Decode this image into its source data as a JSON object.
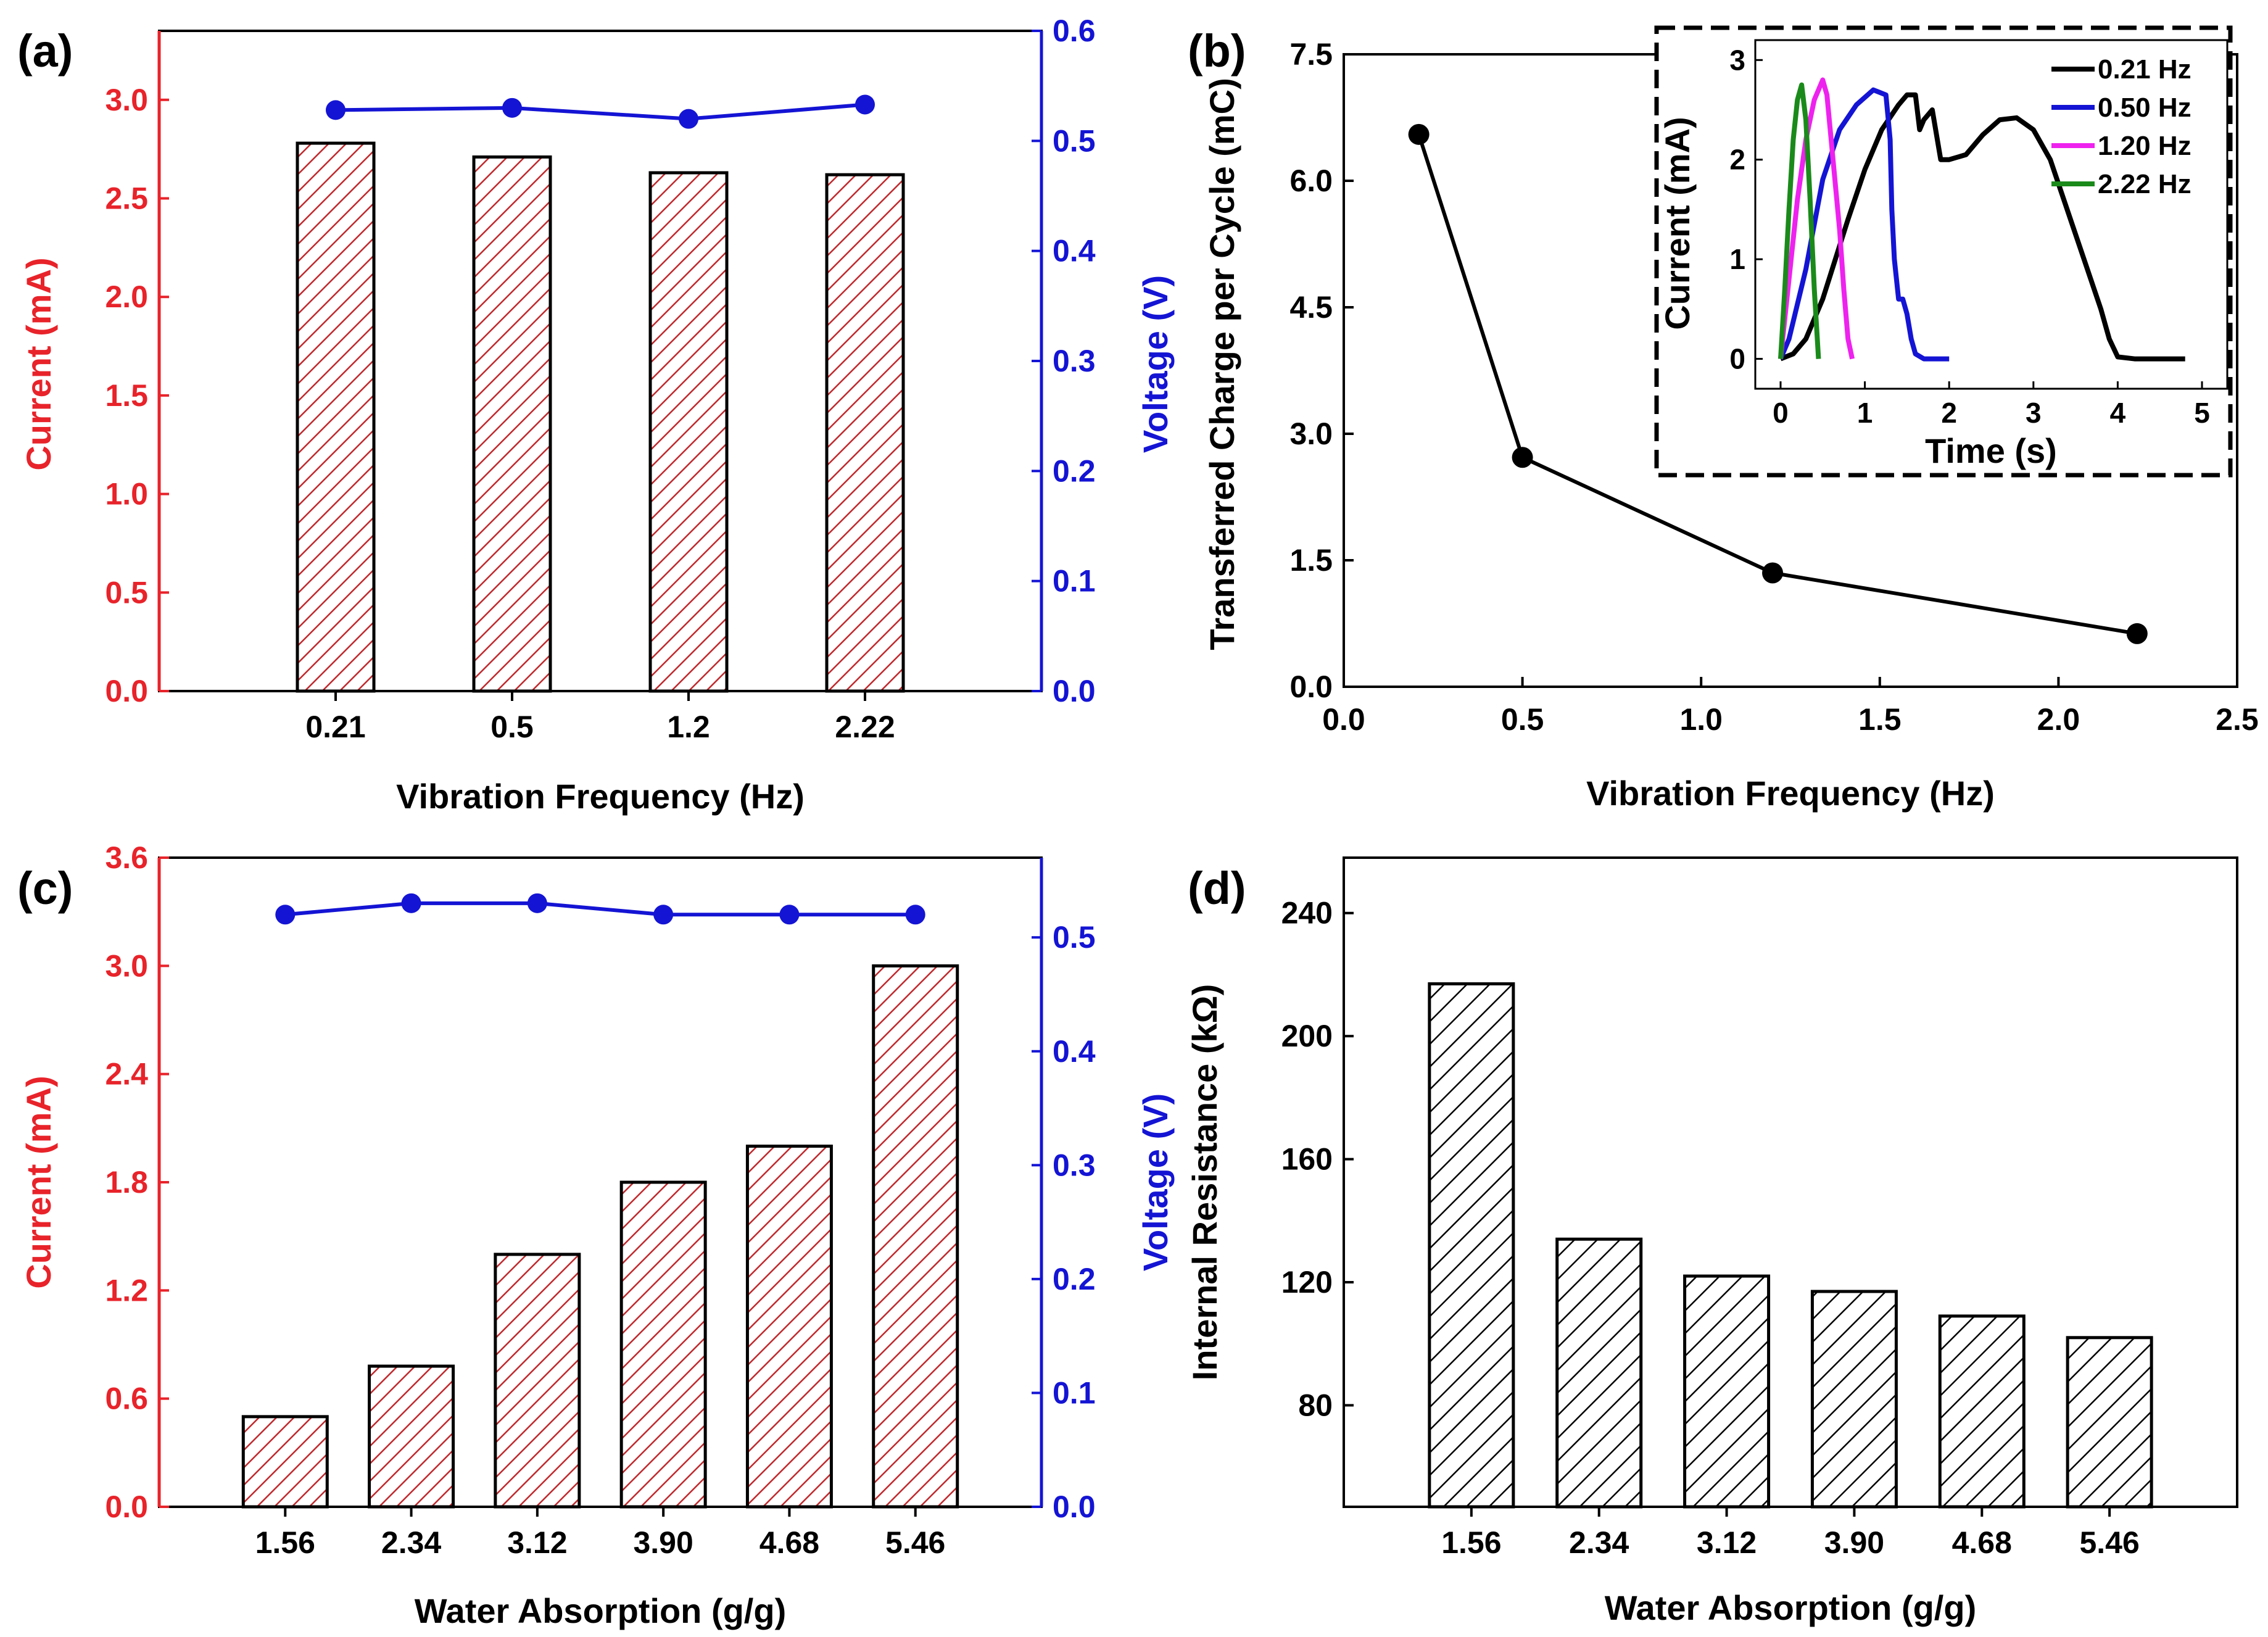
{
  "colors": {
    "red": "#e8232a",
    "hatch_red": "#c0282c",
    "blue": "#1414d4",
    "black": "#000000",
    "magenta": "#ee22ee",
    "green": "#1a8a1a"
  },
  "chart_data": [
    {
      "id": "a",
      "panel_label": "(a)",
      "type": "bar+line",
      "xlabel": "Vibration Frequency (Hz)",
      "ylabel": "Current (mA)",
      "ylabel_right": "Voltage (V)",
      "categories": [
        "0.21",
        "0.5",
        "1.2",
        "2.22"
      ],
      "bar_series": {
        "name": "Current (mA)",
        "values": [
          2.78,
          2.71,
          2.63,
          2.62
        ]
      },
      "line_series": {
        "name": "Voltage (V)",
        "values": [
          0.528,
          0.53,
          0.52,
          0.533
        ]
      },
      "ylim": [
        0,
        3.35
      ],
      "yticks": [
        "0.0",
        "0.5",
        "1.0",
        "1.5",
        "2.0",
        "2.5",
        "3.0"
      ],
      "ylim_right": [
        0,
        0.6
      ],
      "yticks_right": [
        "0.0",
        "0.1",
        "0.2",
        "0.3",
        "0.4",
        "0.5",
        "0.6"
      ]
    },
    {
      "id": "b",
      "panel_label": "(b)",
      "type": "line",
      "xlabel": "Vibration Frequency (Hz)",
      "ylabel": "Transferred Charge per Cycle (mC)",
      "x": [
        0.21,
        0.5,
        1.2,
        2.22
      ],
      "y": [
        6.55,
        2.72,
        1.35,
        0.63
      ],
      "xlim": [
        0,
        2.5
      ],
      "ylim": [
        0,
        7.5
      ],
      "xticks": [
        "0.0",
        "0.5",
        "1.0",
        "1.5",
        "2.0",
        "2.5"
      ],
      "yticks": [
        "0.0",
        "1.5",
        "3.0",
        "4.5",
        "6.0",
        "7.5"
      ],
      "inset": {
        "type": "line",
        "xlabel": "Time (s)",
        "ylabel": "Current (mA)",
        "xlim": [
          -0.3,
          5.3
        ],
        "ylim": [
          -0.3,
          3.2
        ],
        "xticks": [
          "0",
          "1",
          "2",
          "3",
          "4",
          "5"
        ],
        "yticks": [
          "0",
          "1",
          "2",
          "3"
        ],
        "series": [
          {
            "name": "0.21 Hz",
            "x": [
              0,
              0.15,
              0.3,
              0.5,
              0.8,
              1.0,
              1.2,
              1.4,
              1.5,
              1.6,
              1.65,
              1.7,
              1.8,
              1.9,
              2.0,
              2.2,
              2.4,
              2.6,
              2.8,
              3.0,
              3.2,
              3.4,
              3.6,
              3.8,
              3.9,
              4.0,
              4.2,
              4.5,
              4.8
            ],
            "y": [
              0,
              0.05,
              0.2,
              0.6,
              1.4,
              1.9,
              2.3,
              2.55,
              2.65,
              2.65,
              2.3,
              2.4,
              2.5,
              2.0,
              2.0,
              2.05,
              2.25,
              2.4,
              2.42,
              2.3,
              2.0,
              1.5,
              1.0,
              0.5,
              0.2,
              0.02,
              0,
              0,
              0
            ]
          },
          {
            "name": "0.50 Hz",
            "x": [
              0,
              0.1,
              0.3,
              0.5,
              0.7,
              0.9,
              1.1,
              1.25,
              1.3,
              1.32,
              1.35,
              1.4,
              1.45,
              1.5,
              1.55,
              1.6,
              1.7,
              1.8,
              2.0
            ],
            "y": [
              0,
              0.2,
              0.9,
              1.8,
              2.3,
              2.55,
              2.7,
              2.65,
              2.2,
              1.5,
              1.0,
              0.6,
              0.6,
              0.45,
              0.2,
              0.05,
              0,
              0,
              0
            ]
          },
          {
            "name": "1.20 Hz",
            "x": [
              0,
              0.1,
              0.2,
              0.3,
              0.4,
              0.5,
              0.55,
              0.6,
              0.7,
              0.75,
              0.8,
              0.85
            ],
            "y": [
              0,
              0.8,
              1.6,
              2.2,
              2.6,
              2.8,
              2.65,
              2.2,
              1.3,
              0.7,
              0.2,
              0
            ]
          },
          {
            "name": "2.22 Hz",
            "x": [
              0,
              0.05,
              0.1,
              0.15,
              0.2,
              0.25,
              0.3,
              0.35,
              0.4,
              0.45
            ],
            "y": [
              0,
              0.7,
              1.5,
              2.2,
              2.6,
              2.75,
              2.4,
              1.6,
              0.7,
              0
            ]
          }
        ]
      }
    },
    {
      "id": "c",
      "panel_label": "(c)",
      "type": "bar+line",
      "xlabel": "Water Absorption (g/g)",
      "ylabel": "Current (mA)",
      "ylabel_right": "Voltage (V)",
      "categories": [
        "1.56",
        "2.34",
        "3.12",
        "3.90",
        "4.68",
        "5.46"
      ],
      "bar_series": {
        "name": "Current (mA)",
        "values": [
          0.5,
          0.78,
          1.4,
          1.8,
          2.0,
          3.0
        ]
      },
      "line_series": {
        "name": "Voltage (V)",
        "values": [
          0.52,
          0.53,
          0.53,
          0.52,
          0.52,
          0.52
        ]
      },
      "ylim": [
        0,
        3.6
      ],
      "yticks": [
        "0.0",
        "0.6",
        "1.2",
        "1.8",
        "2.4",
        "3.0",
        "3.6"
      ],
      "ylim_right": [
        0,
        0.57
      ],
      "yticks_right": [
        "0.0",
        "0.1",
        "0.2",
        "0.3",
        "0.4",
        "0.5"
      ]
    },
    {
      "id": "d",
      "panel_label": "(d)",
      "type": "bar",
      "xlabel": "Water Absorption (g/g)",
      "ylabel": "Internal Resistance (kΩ)",
      "categories": [
        "1.56",
        "2.34",
        "3.12",
        "3.90",
        "4.68",
        "5.46"
      ],
      "values": [
        217,
        134,
        122,
        117,
        109,
        102
      ],
      "ylim": [
        47,
        258
      ],
      "yticks": [
        "80",
        "120",
        "160",
        "200",
        "240"
      ]
    }
  ]
}
